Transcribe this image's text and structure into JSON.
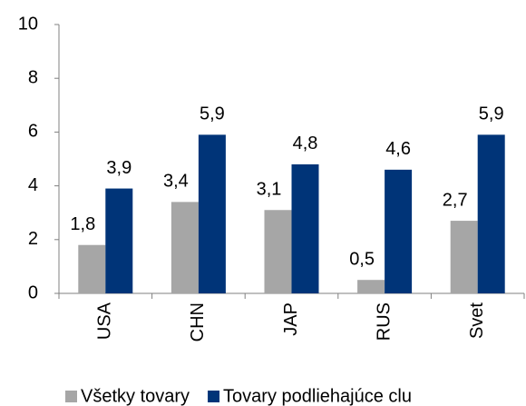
{
  "chart_data": {
    "type": "bar",
    "categories": [
      "USA",
      "CHN",
      "JAP",
      "RUS",
      "Svet"
    ],
    "series": [
      {
        "name": "Všetky tovary",
        "color": "#a6a6a6",
        "values": [
          1.8,
          3.4,
          3.1,
          0.5,
          2.7
        ],
        "value_labels": [
          "1,8",
          "3,4",
          "3,1",
          "0,5",
          "2,7"
        ]
      },
      {
        "name": "Tovary podliehajúce clu",
        "color": "#003478",
        "values": [
          3.9,
          5.9,
          4.8,
          4.6,
          5.9
        ],
        "value_labels": [
          "3,9",
          "5,9",
          "4,8",
          "4,6",
          "5,9"
        ]
      }
    ],
    "ylim": [
      0,
      10
    ],
    "yticks": [
      0,
      2,
      4,
      6,
      8,
      10
    ],
    "grid": false,
    "legend": "bottom"
  }
}
